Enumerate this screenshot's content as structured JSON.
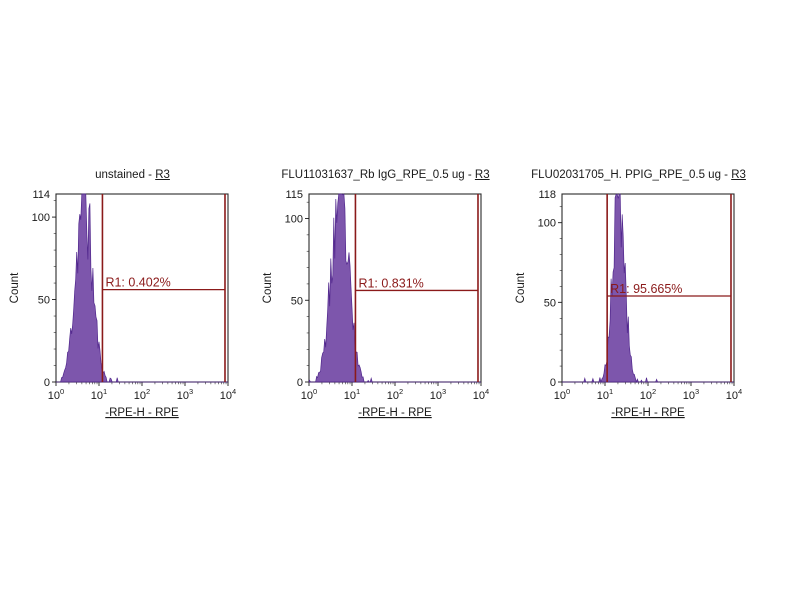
{
  "page": {
    "background": "#ffffff"
  },
  "colors": {
    "histogram": "#6B3FA0",
    "histogram_stroke": "#50268C",
    "gate": "#8B1A1A",
    "axis": "#1a1a1a",
    "frame": "#2a2a2a"
  },
  "chart_data": [
    {
      "type": "histogram",
      "title_prefix": "unstained - ",
      "title_link": "R3",
      "ylabel": "Count",
      "xlabel": "-RPE-H - RPE",
      "ymax": 114,
      "yticks": [
        0,
        50,
        100
      ],
      "x_log_min": 0,
      "x_log_max": 4,
      "xtick_base": "10",
      "xtick_exponents": [
        "0",
        "1",
        "2",
        "3",
        "4"
      ],
      "gate": {
        "name": "R1",
        "label": "R1: 0.402%",
        "percent": 0.402,
        "x_start_log": 1.08,
        "x_end_log": 3.93,
        "y_count": 56
      },
      "peak": {
        "center_log": 0.65,
        "sigma_log": 0.19
      },
      "seed": 11
    },
    {
      "type": "histogram",
      "title_prefix": "FLU11031637_Rb IgG_RPE_0.5 ug - ",
      "title_link": "R3",
      "ylabel": "Count",
      "xlabel": "-RPE-H - RPE",
      "ymax": 115,
      "yticks": [
        0,
        50,
        100
      ],
      "x_log_min": 0,
      "x_log_max": 4,
      "xtick_base": "10",
      "xtick_exponents": [
        "0",
        "1",
        "2",
        "3",
        "4"
      ],
      "gate": {
        "name": "R1",
        "label": "R1: 0.831%",
        "percent": 0.831,
        "x_start_log": 1.08,
        "x_end_log": 3.93,
        "y_count": 56
      },
      "peak": {
        "center_log": 0.72,
        "sigma_log": 0.2
      },
      "seed": 23
    },
    {
      "type": "histogram",
      "title_prefix": "FLU02031705_H. PPIG_RPE_0.5 ug - ",
      "title_link": "R3",
      "ylabel": "Count",
      "xlabel": "-RPE-H - RPE",
      "ymax": 118,
      "yticks": [
        0,
        50,
        100
      ],
      "x_log_min": 0,
      "x_log_max": 4,
      "xtick_base": "10",
      "xtick_exponents": [
        "0",
        "1",
        "2",
        "3",
        "4"
      ],
      "gate": {
        "name": "R1",
        "label": "R1: 95.665%",
        "percent": 95.665,
        "x_start_log": 1.05,
        "x_end_log": 3.93,
        "y_count": 54
      },
      "peak": {
        "center_log": 1.32,
        "sigma_log": 0.14
      },
      "seed": 5
    }
  ]
}
